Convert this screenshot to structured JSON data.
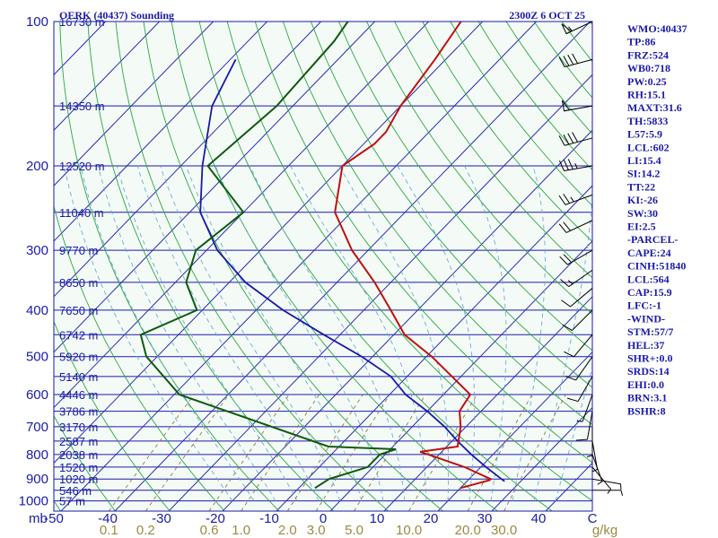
{
  "header": {
    "station": "OERK (40437) Sounding",
    "time": "2300Z  6 OCT 25"
  },
  "colors": {
    "temperature": "#c01010",
    "dewpoint": "#0d5a0d",
    "parcel": "#1a1aa8",
    "isobar": "#1a1aa8",
    "dry_adiabat": "#2aa640",
    "moist_adiabat": "#6fa8d8",
    "mixing_ratio": "#8a7b45"
  },
  "chart_data": {
    "type": "skew-t",
    "pressure_ticks": [
      100,
      200,
      300,
      400,
      500,
      600,
      700,
      800,
      900,
      1000
    ],
    "pressure_axis_unit": "mb",
    "temperature_ticks": [
      "-50",
      "-40",
      "-30",
      "-20",
      "-10",
      "0",
      "10",
      "20",
      "30",
      "40",
      "C"
    ],
    "mixing_ratio_labels": [
      "0.1",
      "0.2",
      "0.6",
      "1.0",
      "2.0",
      "3.0",
      "5.0",
      "10.0",
      "20.0",
      "30.0",
      "g/kg"
    ],
    "height_labels": [
      {
        "p": 100,
        "h": "16730 m"
      },
      {
        "p": 150,
        "h": "14350 m"
      },
      {
        "p": 200,
        "h": "12520 m"
      },
      {
        "p": 250,
        "h": "11040 m"
      },
      {
        "p": 300,
        "h": "9770 m"
      },
      {
        "p": 350,
        "h": "8650 m"
      },
      {
        "p": 400,
        "h": "7650 m"
      },
      {
        "p": 450,
        "h": "6742 m"
      },
      {
        "p": 500,
        "h": "5920 m"
      },
      {
        "p": 550,
        "h": "5140 m"
      },
      {
        "p": 600,
        "h": "4446 m"
      },
      {
        "p": 650,
        "h": "3786 m"
      },
      {
        "p": 700,
        "h": "3170 m"
      },
      {
        "p": 750,
        "h": "2587 m"
      },
      {
        "p": 800,
        "h": "2038 m"
      },
      {
        "p": 850,
        "h": "1520 m"
      },
      {
        "p": 900,
        "h": "1020 m"
      },
      {
        "p": 950,
        "h": "546 m"
      },
      {
        "p": 1000,
        "h": "57 m"
      }
    ],
    "temperature_profile": [
      [
        100,
        -64
      ],
      [
        120,
        -62
      ],
      [
        150,
        -60
      ],
      [
        170,
        -58
      ],
      [
        180,
        -58
      ],
      [
        200,
        -60
      ],
      [
        250,
        -53
      ],
      [
        300,
        -43
      ],
      [
        350,
        -33
      ],
      [
        400,
        -25
      ],
      [
        450,
        -18
      ],
      [
        500,
        -9
      ],
      [
        600,
        5
      ],
      [
        650,
        6
      ],
      [
        700,
        9
      ],
      [
        770,
        12
      ],
      [
        790,
        6
      ],
      [
        800,
        8
      ],
      [
        850,
        17
      ],
      [
        900,
        24
      ],
      [
        905,
        24
      ],
      [
        940,
        20
      ]
    ],
    "dewpoint_profile": [
      [
        100,
        -85
      ],
      [
        110,
        -84
      ],
      [
        150,
        -83
      ],
      [
        200,
        -85
      ],
      [
        250,
        -70
      ],
      [
        300,
        -72
      ],
      [
        350,
        -68
      ],
      [
        400,
        -61
      ],
      [
        450,
        -67
      ],
      [
        500,
        -62
      ],
      [
        600,
        -49
      ],
      [
        770,
        -12
      ],
      [
        780,
        1
      ],
      [
        800,
        -1
      ],
      [
        850,
        -1
      ],
      [
        900,
        -6
      ],
      [
        940,
        -7
      ]
    ],
    "parcel_profile": [
      [
        120,
        -99
      ],
      [
        150,
        -95
      ],
      [
        200,
        -86
      ],
      [
        250,
        -78
      ],
      [
        300,
        -68
      ],
      [
        350,
        -57
      ],
      [
        400,
        -45
      ],
      [
        450,
        -33
      ],
      [
        500,
        -22
      ],
      [
        550,
        -13
      ],
      [
        600,
        -7
      ],
      [
        650,
        0
      ],
      [
        700,
        6
      ],
      [
        750,
        11
      ],
      [
        800,
        16
      ],
      [
        850,
        21
      ],
      [
        900,
        26
      ],
      [
        910,
        27
      ]
    ],
    "wind_barbs": [
      {
        "p": 100,
        "dir": 245,
        "spd": 55
      },
      {
        "p": 120,
        "dir": 255,
        "spd": 40
      },
      {
        "p": 150,
        "dir": 260,
        "spd": 50
      },
      {
        "p": 175,
        "dir": 255,
        "spd": 40
      },
      {
        "p": 200,
        "dir": 260,
        "spd": 35
      },
      {
        "p": 230,
        "dir": 250,
        "spd": 25
      },
      {
        "p": 260,
        "dir": 245,
        "spd": 20
      },
      {
        "p": 300,
        "dir": 240,
        "spd": 20
      },
      {
        "p": 330,
        "dir": 235,
        "spd": 15
      },
      {
        "p": 360,
        "dir": 230,
        "spd": 10
      },
      {
        "p": 400,
        "dir": 225,
        "spd": 10
      },
      {
        "p": 450,
        "dir": 220,
        "spd": 10
      },
      {
        "p": 500,
        "dir": 215,
        "spd": 10
      },
      {
        "p": 550,
        "dir": 210,
        "spd": 10
      },
      {
        "p": 600,
        "dir": 200,
        "spd": 5
      },
      {
        "p": 650,
        "dir": 190,
        "spd": 10
      },
      {
        "p": 700,
        "dir": 180,
        "spd": 5
      },
      {
        "p": 750,
        "dir": 170,
        "spd": 5
      },
      {
        "p": 800,
        "dir": 160,
        "spd": 5
      },
      {
        "p": 850,
        "dir": 140,
        "spd": 5
      },
      {
        "p": 900,
        "dir": 100,
        "spd": 5
      },
      {
        "p": 950,
        "dir": 90,
        "spd": 5
      }
    ]
  },
  "indices": [
    "WMO:40437",
    "TP:86",
    "FRZ:524",
    "WB0:718",
    "PW:0.25",
    "RH:15.1",
    "MAXT:31.6",
    "TH:5833",
    "L57:5.9",
    "LCL:602",
    "LI:15.4",
    "SI:14.2",
    "TT:22",
    "KI:-26",
    "SW:30",
    "EI:2.5",
    "-PARCEL-",
    "CAPE:24",
    "CINH:51840",
    "LCL:564",
    "CAP:15.9",
    "LFC:-1",
    "-WIND-",
    "STM:57/7",
    "HEL:37",
    "SHR+:0.0",
    "SRDS:14",
    "EHI:0.0",
    "BRN:3.1",
    "BSHR:8"
  ]
}
